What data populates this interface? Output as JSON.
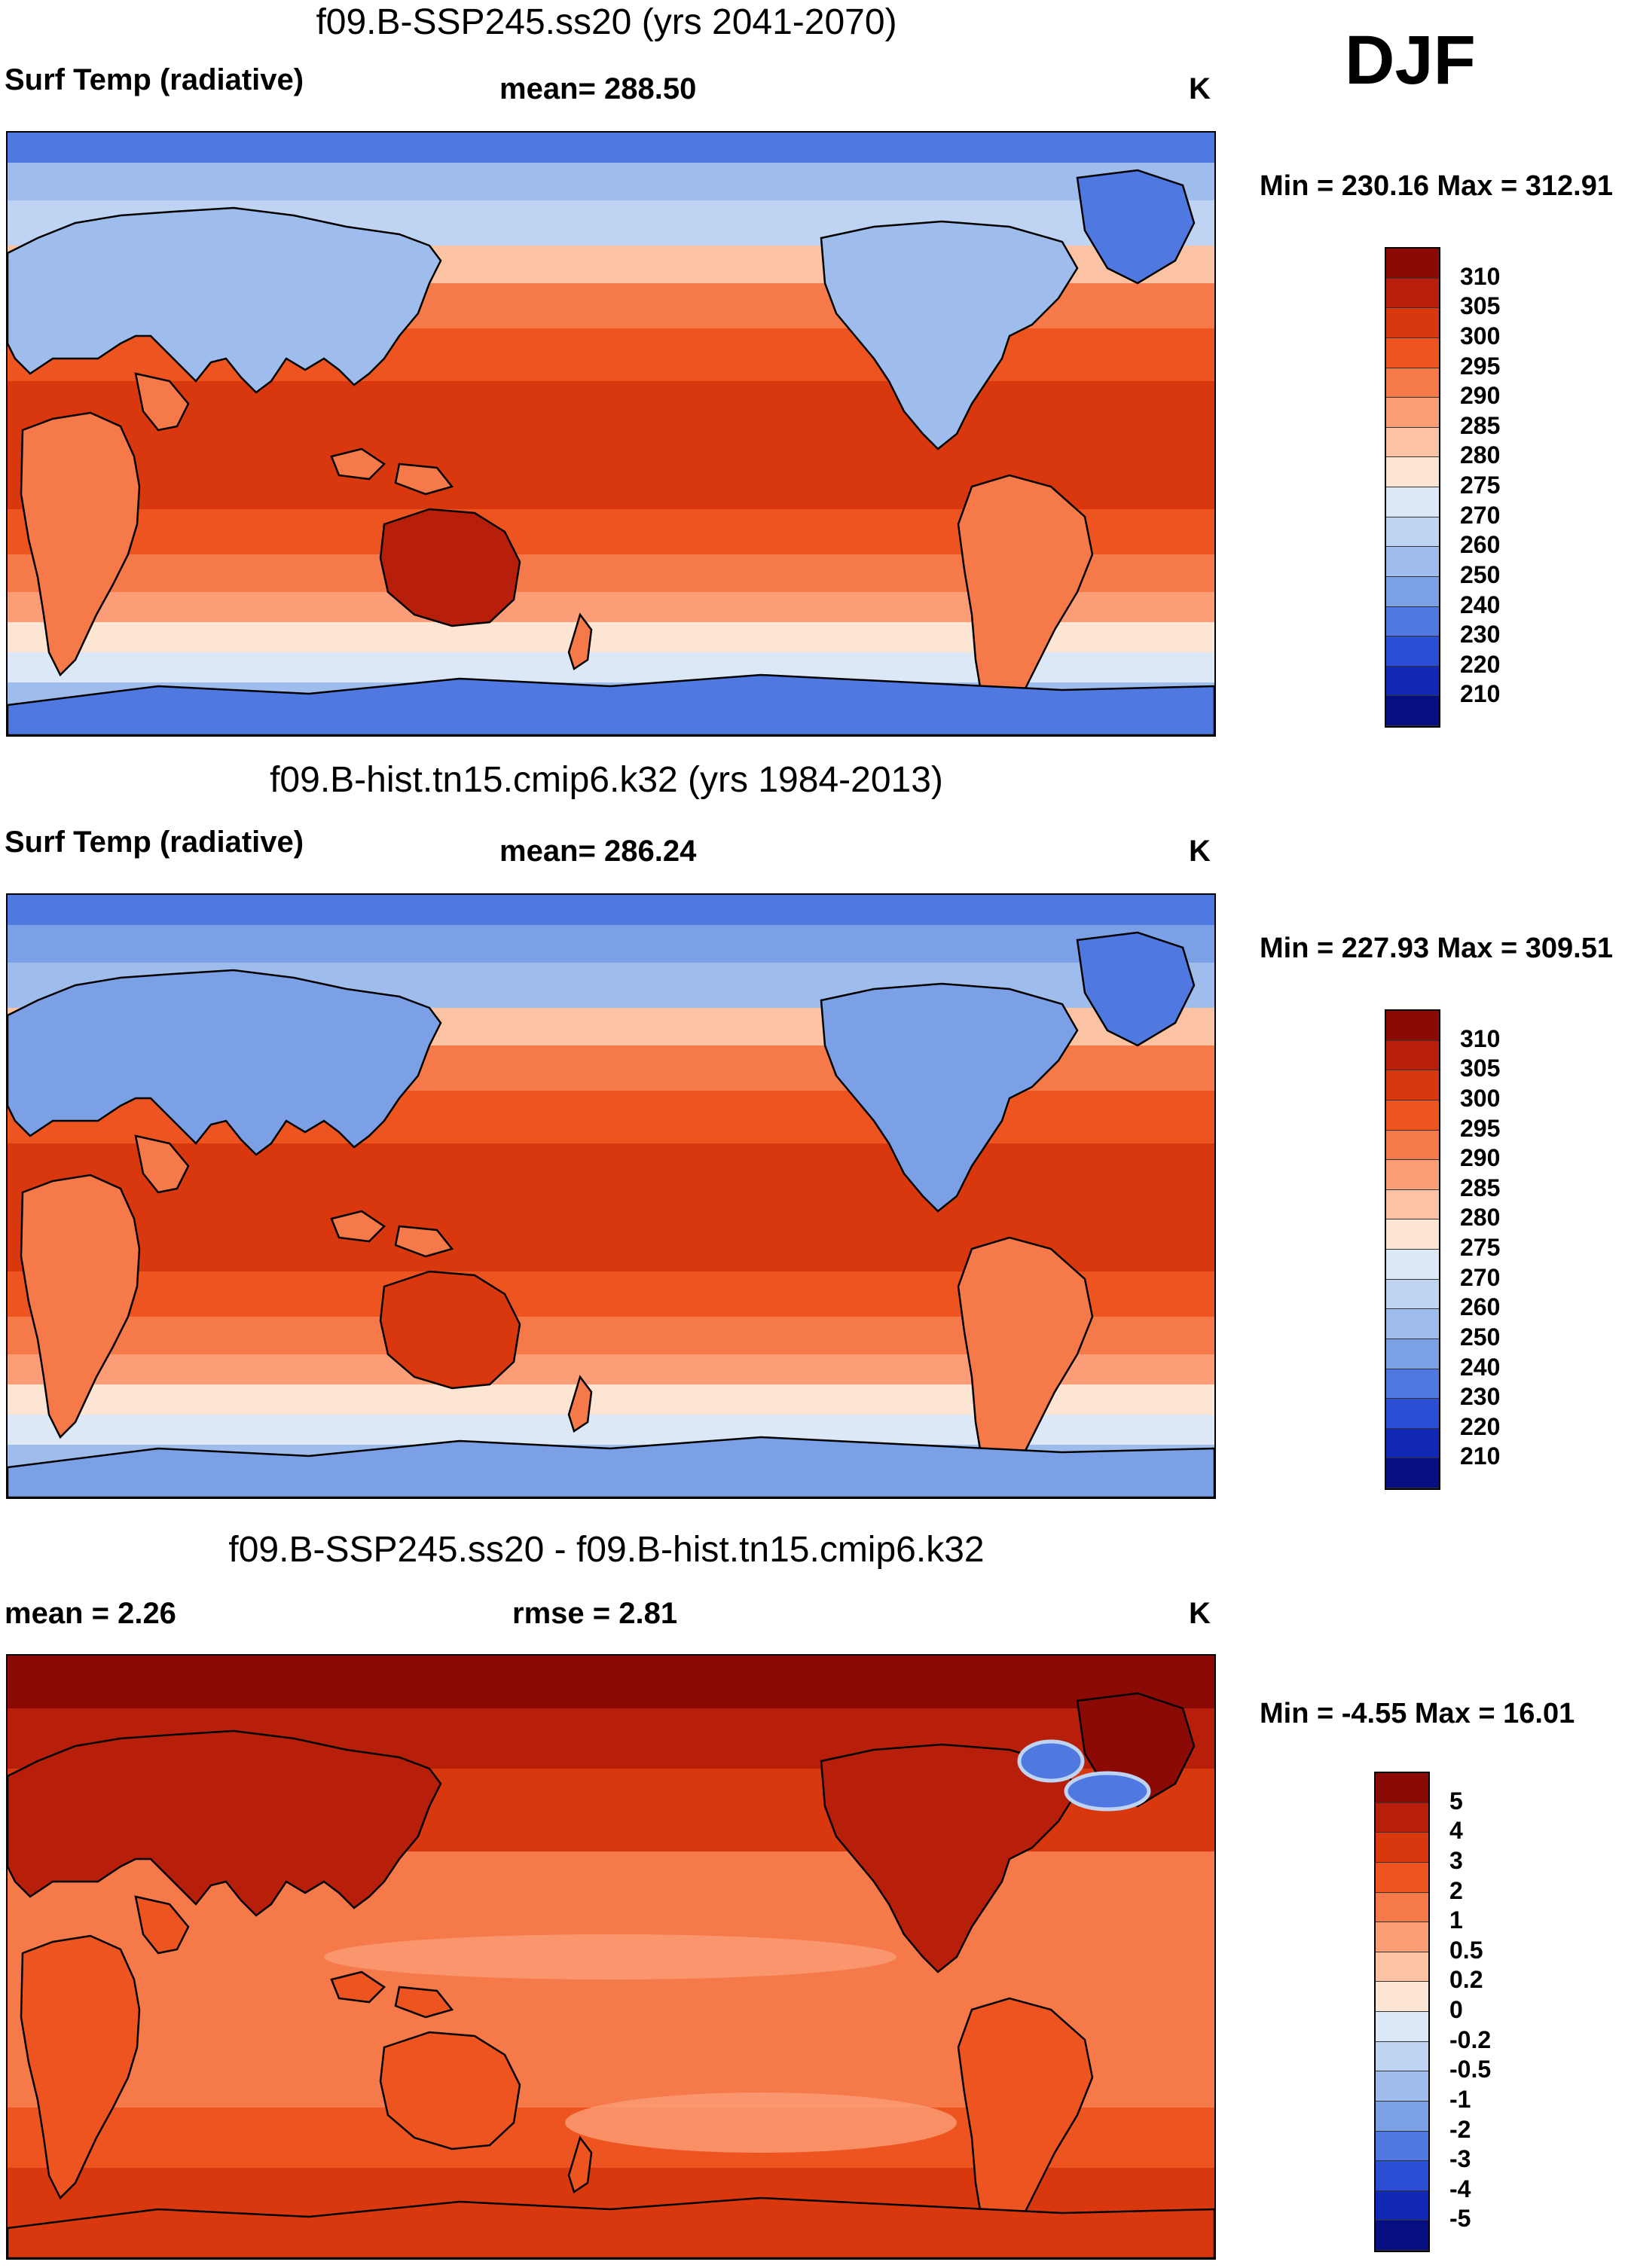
{
  "season": "DJF",
  "panels": [
    {
      "id": "p1",
      "title": "f09.B-SSP245.ss20 (yrs 2041-2070)",
      "left_label": "Surf Temp (radiative)",
      "center_label": "mean= 288.50",
      "units": "K",
      "minmax": "Min = 230.16 Max = 312.91",
      "colorbar": {
        "labels": [
          "310",
          "305",
          "300",
          "295",
          "290",
          "285",
          "280",
          "275",
          "270",
          "260",
          "250",
          "240",
          "230",
          "220",
          "210"
        ],
        "colors": [
          "#8c0a05",
          "#b81f0b",
          "#d9380e",
          "#ee5420",
          "#f6794a",
          "#fb9e77",
          "#fcc2a4",
          "#fde5d4",
          "#dde8f7",
          "#bfd4f2",
          "#9ebcec",
          "#7ba0e6",
          "#4f78e0",
          "#2b4fd4",
          "#1229b8",
          "#050f80"
        ]
      },
      "palette": "temp"
    },
    {
      "id": "p2",
      "title": "f09.B-hist.tn15.cmip6.k32 (yrs 1984-2013)",
      "left_label": "Surf Temp (radiative)",
      "center_label": "mean= 286.24",
      "units": "K",
      "minmax": "Min = 227.93 Max = 309.51",
      "colorbar": {
        "labels": [
          "310",
          "305",
          "300",
          "295",
          "290",
          "285",
          "280",
          "275",
          "270",
          "260",
          "250",
          "240",
          "230",
          "220",
          "210"
        ],
        "colors": [
          "#8c0a05",
          "#b81f0b",
          "#d9380e",
          "#ee5420",
          "#f6794a",
          "#fb9e77",
          "#fcc2a4",
          "#fde5d4",
          "#dde8f7",
          "#bfd4f2",
          "#9ebcec",
          "#7ba0e6",
          "#4f78e0",
          "#2b4fd4",
          "#1229b8",
          "#050f80"
        ]
      },
      "palette": "temp"
    },
    {
      "id": "p3",
      "title": "f09.B-SSP245.ss20 - f09.B-hist.tn15.cmip6.k32",
      "left_label": "mean =   2.26",
      "center_label": "rmse =   2.81",
      "units": "K",
      "minmax": "Min =  -4.55 Max =  16.01",
      "colorbar": {
        "labels": [
          "5",
          "4",
          "3",
          "2",
          "1",
          "0.5",
          "0.2",
          "0",
          "-0.2",
          "-0.5",
          "-1",
          "-2",
          "-3",
          "-4",
          "-5"
        ],
        "colors": [
          "#8c0a05",
          "#b81f0b",
          "#d9380e",
          "#ee5420",
          "#f6794a",
          "#fb9e77",
          "#fcc2a4",
          "#fde5d4",
          "#dde8f7",
          "#bfd4f2",
          "#9ebcec",
          "#7ba0e6",
          "#4f78e0",
          "#2b4fd4",
          "#1229b8",
          "#050f80"
        ]
      },
      "palette": "diff"
    }
  ]
}
